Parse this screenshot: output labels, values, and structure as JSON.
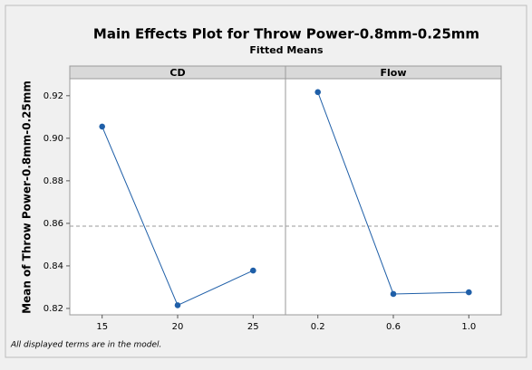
{
  "chart_data": {
    "type": "line",
    "title": "Main Effects Plot for Throw Power-0.8mm-0.25mm",
    "subtitle": "Fitted Means",
    "ylabel": "Mean of Throw Power-0.8mm-0.25mm",
    "footnote": "All displayed terms are in the model.",
    "color": "#1f5fa8",
    "reference_line": 0.8587,
    "ylim": [
      0.817,
      0.928
    ],
    "yticks": [
      0.82,
      0.84,
      0.86,
      0.88,
      {
        "value": 0.9,
        "label": "0.90"
      },
      0.92
    ],
    "panels": [
      {
        "name": "CD",
        "categories": [
          "15",
          "20",
          "25"
        ],
        "values": [
          0.9055,
          0.8215,
          0.8378
        ]
      },
      {
        "name": "Flow",
        "categories": [
          "0.2",
          "0.6",
          "1.0"
        ],
        "values": [
          0.9217,
          0.8268,
          0.8276
        ]
      }
    ]
  }
}
